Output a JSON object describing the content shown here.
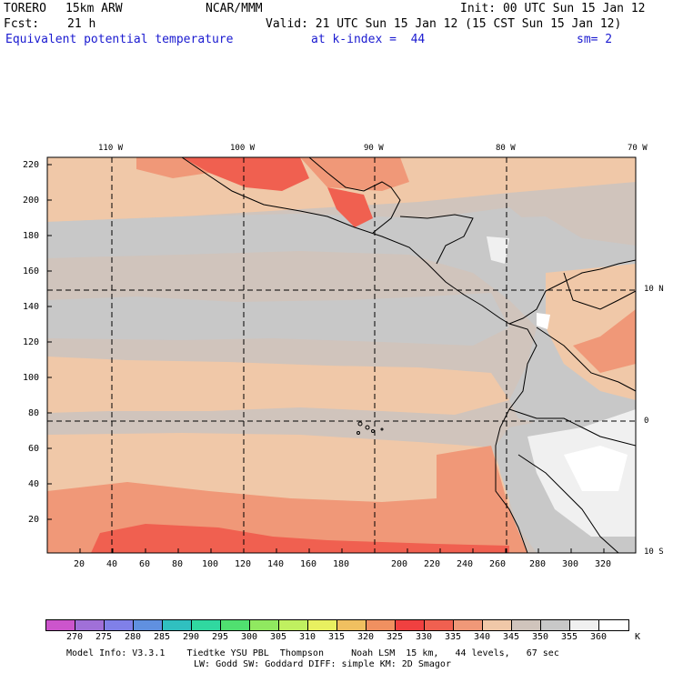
{
  "header": {
    "model": "TORERO",
    "resolution": "15km ARW",
    "center": "NCAR/MMM",
    "init": "Init: 00 UTC Sun 15 Jan 12",
    "fcst_label": "Fcst:",
    "fcst_value": "21 h",
    "valid": "Valid: 21 UTC Sun 15 Jan 12 (15 CST Sun 15 Jan 12)",
    "field": "Equivalent potential temperature",
    "level": "at k-index =  44",
    "smoothing": "sm= 2"
  },
  "axes": {
    "x_ticks": [
      "20",
      "40",
      "60",
      "80",
      "100",
      "120",
      "140",
      "160",
      "180",
      "200",
      "220",
      "240",
      "260",
      "280",
      "300",
      "320"
    ],
    "y_ticks": [
      "20",
      "40",
      "60",
      "80",
      "100",
      "120",
      "140",
      "160",
      "180",
      "200",
      "220"
    ],
    "lon_labels": [
      "110 W",
      "100 W",
      "90 W",
      "80 W",
      "70 W"
    ],
    "lat_labels": [
      "10 N",
      "0",
      "10 S"
    ]
  },
  "colorbar": {
    "labels": [
      "270",
      "275",
      "280",
      "285",
      "290",
      "295",
      "300",
      "305",
      "310",
      "315",
      "320",
      "325",
      "330",
      "335",
      "340",
      "345",
      "350",
      "355",
      "360"
    ],
    "unit": "K",
    "colors": [
      "#cc55cc",
      "#a070d8",
      "#8080e8",
      "#6090e0",
      "#30c0c0",
      "#30d8a0",
      "#50e070",
      "#90e860",
      "#c0f060",
      "#e8f060",
      "#f0c060",
      "#f09060",
      "#f04040",
      "#f06050",
      "#f09878",
      "#f0c8a8",
      "#d0c4bc",
      "#c8c8c8",
      "#f0f0f0",
      "#ffffff"
    ]
  },
  "footer": {
    "line1": "Model Info: V3.3.1    Tiedtke YSU PBL  Thompson     Noah LSM  15 km,   44 levels,   67 sec",
    "line2": "LW: Godd SW: Goddard DIFF: simple KM: 2D Smagor"
  }
}
